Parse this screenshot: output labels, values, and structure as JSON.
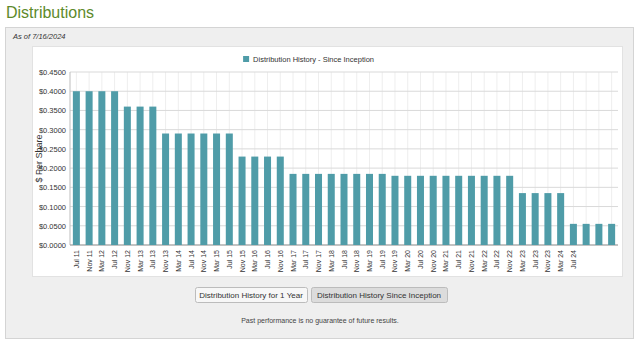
{
  "page": {
    "heading": "Distributions",
    "as_of": "As of 7/16/2024",
    "buttons": [
      "Distribution History for 1 Year",
      "Distribution History Since Inception"
    ],
    "footnote": "Past performance is no guarantee of future results."
  },
  "chart_data": {
    "type": "bar",
    "y_label": "$ Per Share",
    "categories": [
      "Jul 11",
      "Nov 11",
      "Mar 12",
      "Jul 12",
      "Nov 12",
      "Mar 13",
      "Jul 13",
      "Nov 13",
      "Mar 14",
      "Jul 14",
      "Nov 14",
      "Mar 15",
      "Jul 15",
      "Nov 15",
      "Mar 16",
      "Jul 16",
      "Nov 16",
      "Mar 17",
      "Jul 17",
      "Nov 17",
      "Mar 18",
      "Jul 18",
      "Nov 18",
      "Mar 19",
      "Jul 19",
      "Nov 19",
      "Mar 20",
      "Jul 20",
      "Nov 20",
      "Mar 21",
      "Jul 21",
      "Nov 21",
      "Mar 22",
      "Jul 22",
      "Nov 22",
      "Mar 23",
      "Jul 23",
      "Nov 23",
      "Mar 24",
      "Jul 24",
      null,
      null,
      null
    ],
    "series": [
      {
        "name": "Distribution History - Since Inception",
        "color": "#4f9ca8",
        "values": [
          0.4,
          0.4,
          0.4,
          0.4,
          0.36,
          0.36,
          0.36,
          0.29,
          0.29,
          0.29,
          0.29,
          0.29,
          0.29,
          0.23,
          0.23,
          0.23,
          0.23,
          0.185,
          0.185,
          0.185,
          0.185,
          0.185,
          0.185,
          0.185,
          0.185,
          0.18,
          0.18,
          0.18,
          0.18,
          0.18,
          0.18,
          0.18,
          0.18,
          0.18,
          0.18,
          0.135,
          0.135,
          0.135,
          0.135,
          0.055,
          0.055,
          0.055,
          0.055
        ]
      }
    ],
    "ylim": [
      0,
      0.45
    ],
    "yticks": [
      {
        "value": 0,
        "label": "$0.0000"
      },
      {
        "value": 0.05,
        "label": "$0.0500"
      },
      {
        "value": 0.1,
        "label": "$0.1000"
      },
      {
        "value": 0.15,
        "label": "$0.1500"
      },
      {
        "value": 0.2,
        "label": "$0.2000"
      },
      {
        "value": 0.25,
        "label": "$0.2500"
      },
      {
        "value": 0.3,
        "label": "$0.3000"
      },
      {
        "value": 0.35,
        "label": "$0.3500"
      },
      {
        "value": 0.4,
        "label": "$0.4000"
      },
      {
        "value": 0.45,
        "label": "$0.4500"
      }
    ],
    "grid": true,
    "legend": "top"
  }
}
